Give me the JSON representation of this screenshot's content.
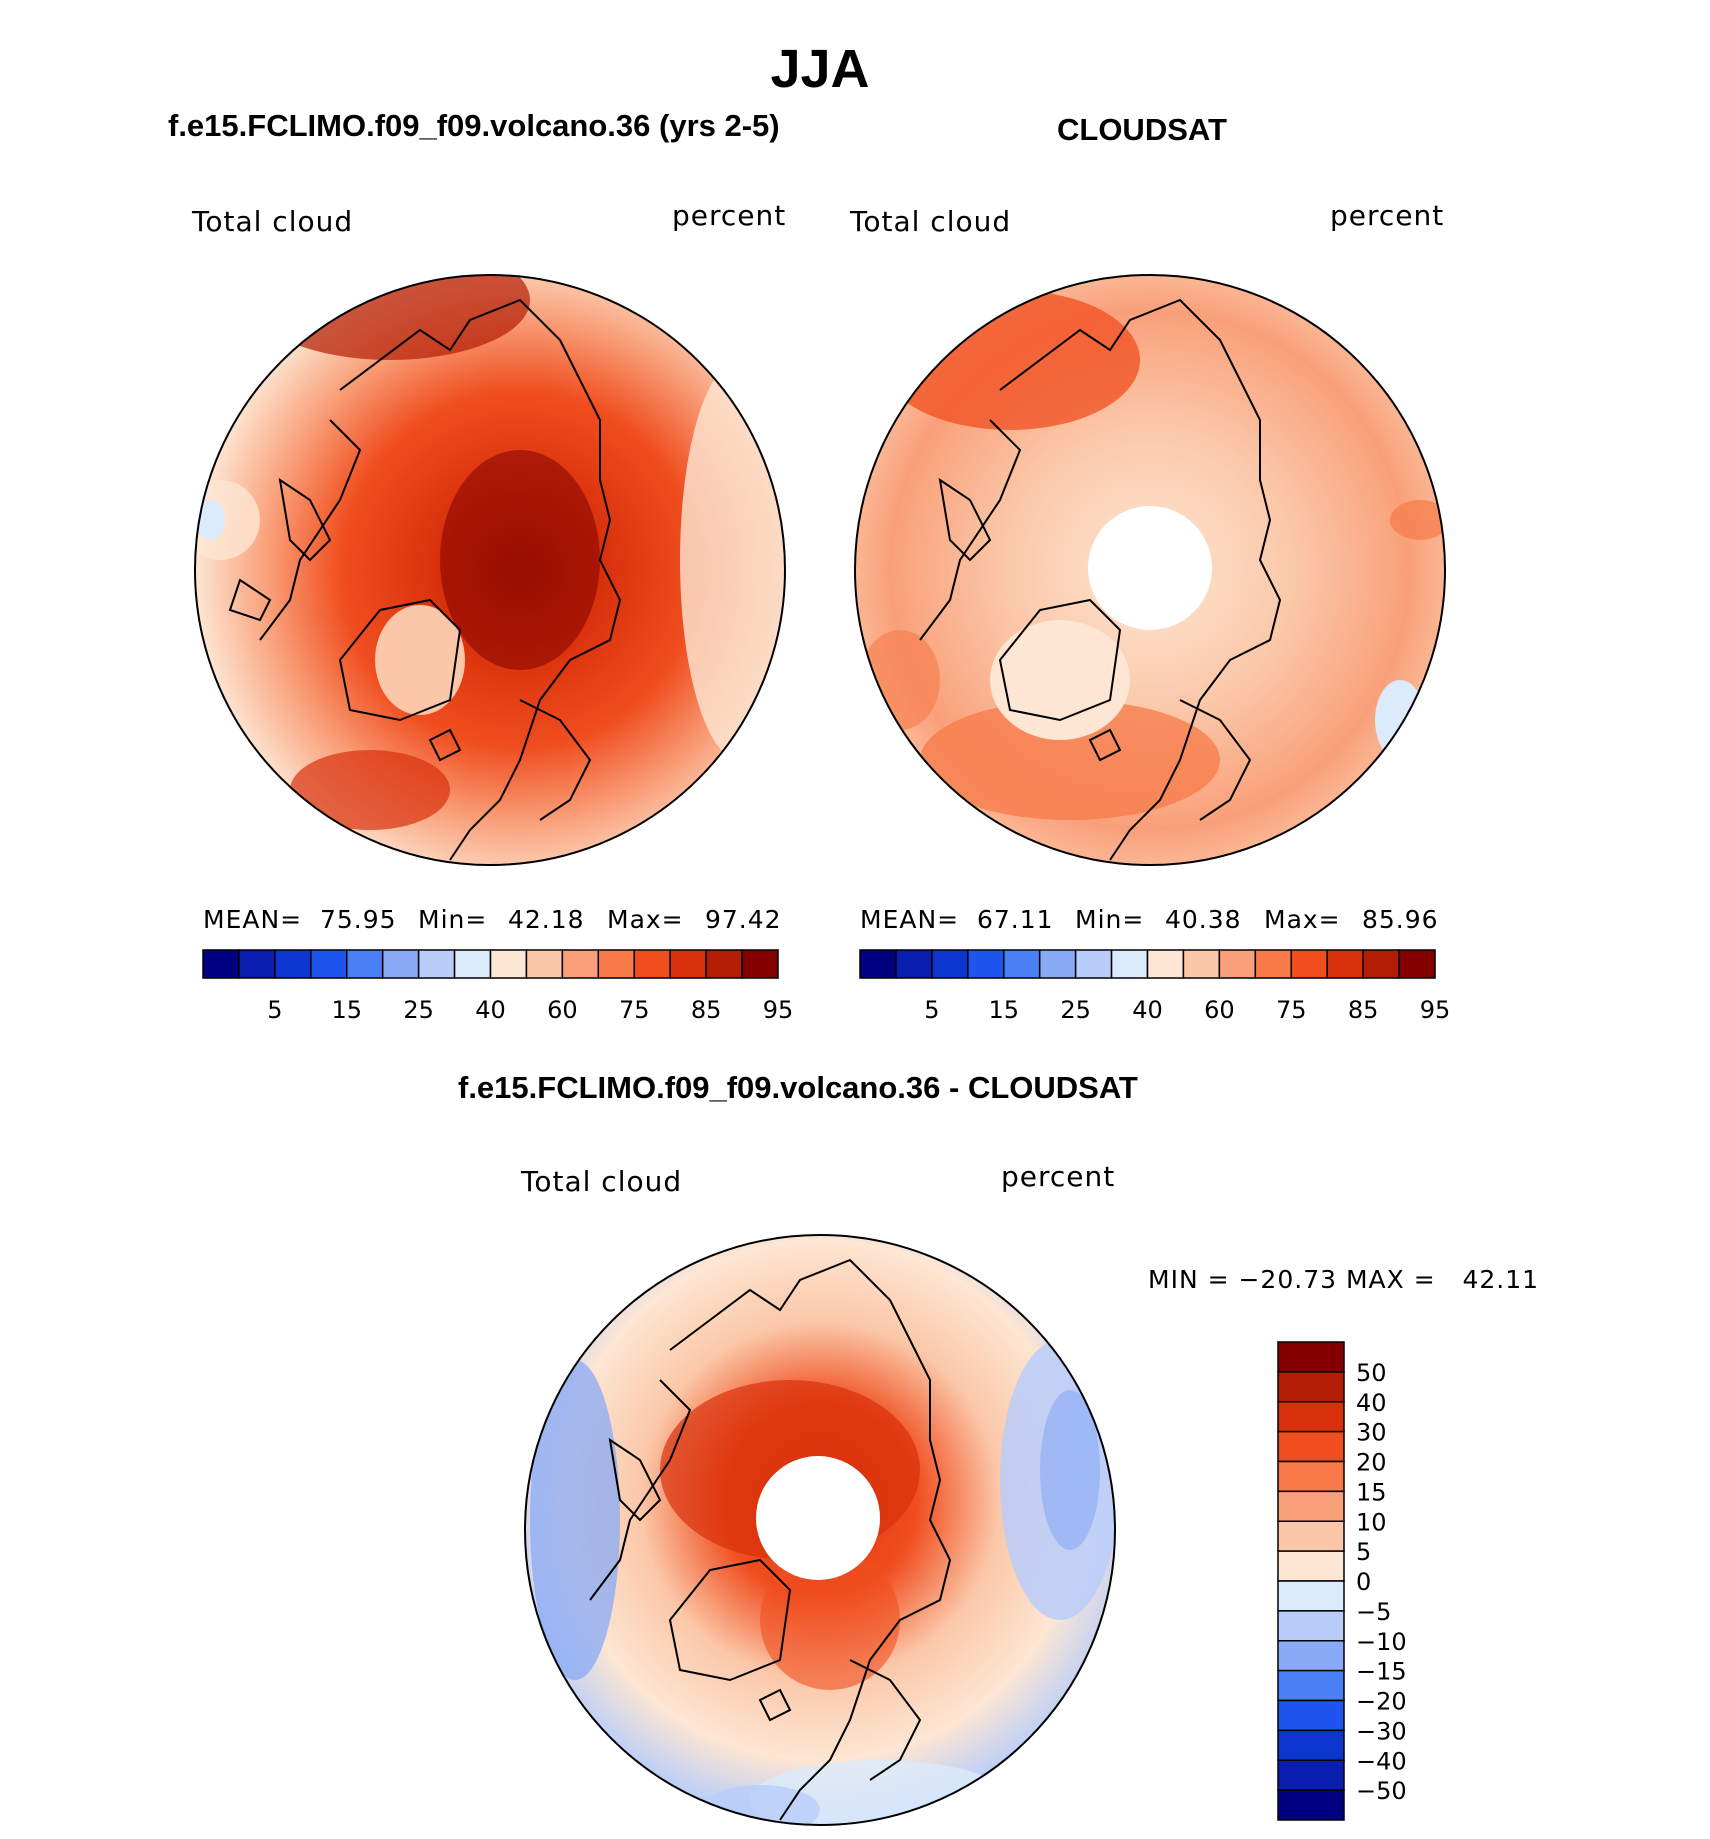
{
  "title": "JJA",
  "panels": [
    {
      "id": "model",
      "title": "f.e15.FCLIMO.f09_f09.volcano.36 (yrs 2-5)",
      "left_label": "Total cloud",
      "right_label": "percent",
      "mean_label": "MEAN=",
      "mean": "75.95",
      "min_label": "Min=",
      "min": "42.18",
      "max_label": "Max=",
      "max": "97.42"
    },
    {
      "id": "obs",
      "title": "CLOUDSAT",
      "left_label": "Total cloud",
      "right_label": "percent",
      "mean_label": "MEAN=",
      "mean": "67.11",
      "min_label": "Min=",
      "min": "40.38",
      "max_label": "Max=",
      "max": "85.96"
    }
  ],
  "abs_colorbar": {
    "colors": [
      "#000080",
      "#0a1fb0",
      "#0d35d0",
      "#1f55ef",
      "#4a7ff5",
      "#88aaf7",
      "#b8cdfa",
      "#dcebfb",
      "#fde6d3",
      "#fbc7a8",
      "#f9a07a",
      "#f77a48",
      "#f04e1f",
      "#d9300c",
      "#b31d04",
      "#840000"
    ],
    "ticks": [
      "5",
      "15",
      "25",
      "40",
      "60",
      "75",
      "85",
      "95"
    ]
  },
  "diff_panel": {
    "title": "f.e15.FCLIMO.f09_f09.volcano.36 - CLOUDSAT",
    "left_label": "Total cloud",
    "right_label": "percent",
    "minmax": "MIN = −20.73 MAX =   42.11",
    "colors": [
      "#840000",
      "#b31d04",
      "#d9300c",
      "#f04e1f",
      "#f77a48",
      "#f9a07a",
      "#fbc7a8",
      "#fde6d3",
      "#dcebfb",
      "#b8cdfa",
      "#88aaf7",
      "#4a7ff5",
      "#1f55ef",
      "#0d35d0",
      "#0a1fb0",
      "#000080"
    ],
    "ticks": [
      "50",
      "40",
      "30",
      "20",
      "15",
      "10",
      "5",
      "0",
      "−5",
      "−10",
      "−15",
      "−20",
      "−30",
      "−40",
      "−50"
    ]
  }
}
